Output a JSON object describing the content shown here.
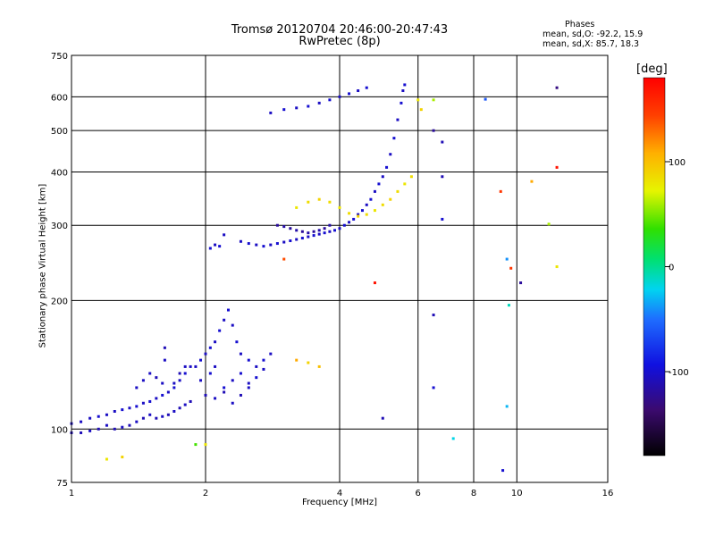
{
  "chart_data": {
    "type": "scatter",
    "title": "Tromsø 20120704 20:46:00-20:47:43",
    "subtitle": "RwPretec (8p)",
    "xlabel": "Frequency [MHz]",
    "ylabel": "Stationary phase Virtual Height [km]",
    "x_scale": "log",
    "y_scale": "log",
    "xlim": [
      1,
      16
    ],
    "ylim": [
      75,
      750
    ],
    "x_ticks": [
      1,
      2,
      4,
      6,
      8,
      10,
      16
    ],
    "y_ticks": [
      75,
      100,
      200,
      300,
      400,
      500,
      600,
      750
    ],
    "grid": true,
    "legend": {
      "heading": "Phases",
      "line1": "mean, sd,O: -92.2, 15.9",
      "line2": "mean, sd,X:  85.7, 18.3"
    },
    "colorbar": {
      "label": "[deg]",
      "range": [
        -180,
        180
      ],
      "ticks": [
        100,
        0,
        -100
      ]
    },
    "series": [
      {
        "points": [
          [
            1.0,
            103,
            -105
          ],
          [
            1.05,
            104,
            -105
          ],
          [
            1.1,
            106,
            -105
          ],
          [
            1.15,
            107,
            -100
          ],
          [
            1.2,
            108,
            -105
          ],
          [
            1.25,
            110,
            -105
          ],
          [
            1.3,
            111,
            -100
          ],
          [
            1.35,
            112,
            -105
          ],
          [
            1.4,
            113,
            -100
          ],
          [
            1.45,
            115,
            -105
          ],
          [
            1.5,
            116,
            -100
          ],
          [
            1.55,
            118,
            -105
          ],
          [
            1.6,
            120,
            -100
          ],
          [
            1.65,
            122,
            -105
          ],
          [
            1.7,
            125,
            -100
          ],
          [
            1.75,
            130,
            -105
          ],
          [
            1.8,
            135,
            -100
          ],
          [
            1.85,
            140,
            -105
          ],
          [
            1.0,
            98,
            -110
          ],
          [
            1.05,
            98,
            -110
          ],
          [
            1.1,
            99,
            -105
          ],
          [
            1.15,
            100,
            -110
          ],
          [
            1.2,
            102,
            -105
          ],
          [
            1.25,
            100,
            -110
          ],
          [
            1.3,
            101,
            -105
          ],
          [
            1.35,
            102,
            -110
          ],
          [
            1.4,
            104,
            -105
          ],
          [
            1.45,
            106,
            -110
          ],
          [
            1.5,
            108,
            -105
          ],
          [
            1.55,
            106,
            -110
          ],
          [
            1.6,
            107,
            -105
          ],
          [
            1.65,
            108,
            -110
          ],
          [
            1.7,
            110,
            -105
          ],
          [
            1.75,
            112,
            -110
          ],
          [
            1.8,
            114,
            -105
          ],
          [
            1.85,
            116,
            -110
          ],
          [
            1.4,
            125,
            -105
          ],
          [
            1.45,
            130,
            -105
          ],
          [
            1.5,
            135,
            -105
          ],
          [
            1.55,
            132,
            -110
          ],
          [
            1.6,
            128,
            -105
          ],
          [
            1.62,
            145,
            -105
          ],
          [
            1.62,
            155,
            -110
          ],
          [
            1.7,
            128,
            -105
          ],
          [
            1.75,
            135,
            -110
          ],
          [
            1.8,
            140,
            -105
          ],
          [
            1.9,
            140,
            -105
          ],
          [
            1.95,
            145,
            -100
          ],
          [
            2.0,
            150,
            -105
          ],
          [
            2.05,
            155,
            -100
          ],
          [
            2.1,
            160,
            -105
          ],
          [
            2.15,
            170,
            -100
          ],
          [
            2.2,
            180,
            -105
          ],
          [
            2.25,
            190,
            -100
          ],
          [
            2.3,
            175,
            -105
          ],
          [
            2.35,
            160,
            -100
          ],
          [
            2.4,
            150,
            -105
          ],
          [
            2.5,
            145,
            -100
          ],
          [
            2.6,
            140,
            -105
          ],
          [
            2.7,
            145,
            -100
          ],
          [
            2.8,
            150,
            -105
          ],
          [
            1.95,
            130,
            -105
          ],
          [
            2.05,
            135,
            -100
          ],
          [
            2.1,
            140,
            -105
          ],
          [
            2.2,
            125,
            -100
          ],
          [
            2.3,
            130,
            -105
          ],
          [
            2.4,
            135,
            -100
          ],
          [
            2.5,
            128,
            -105
          ],
          [
            2.6,
            132,
            -100
          ],
          [
            2.7,
            138,
            -105
          ],
          [
            2.0,
            120,
            -110
          ],
          [
            2.1,
            118,
            -105
          ],
          [
            2.2,
            122,
            -110
          ],
          [
            2.3,
            115,
            -105
          ],
          [
            2.4,
            120,
            -110
          ],
          [
            2.5,
            125,
            -105
          ],
          [
            2.05,
            265,
            -100
          ],
          [
            2.1,
            270,
            -105
          ],
          [
            2.15,
            268,
            -100
          ],
          [
            2.2,
            285,
            -105
          ],
          [
            2.4,
            275,
            -105
          ],
          [
            2.5,
            272,
            -100
          ],
          [
            2.6,
            270,
            -105
          ],
          [
            2.7,
            268,
            -100
          ],
          [
            2.8,
            270,
            -105
          ],
          [
            2.9,
            272,
            -100
          ],
          [
            3.0,
            274,
            -105
          ],
          [
            3.1,
            276,
            -100
          ],
          [
            3.2,
            278,
            -105
          ],
          [
            3.3,
            280,
            -100
          ],
          [
            3.4,
            282,
            -105
          ],
          [
            3.5,
            284,
            -100
          ],
          [
            3.6,
            286,
            -105
          ],
          [
            3.7,
            288,
            -100
          ],
          [
            3.8,
            290,
            -105
          ],
          [
            3.9,
            292,
            -100
          ],
          [
            4.0,
            295,
            -105
          ],
          [
            4.1,
            300,
            -100
          ],
          [
            4.2,
            305,
            -105
          ],
          [
            4.3,
            310,
            -100
          ],
          [
            4.4,
            318,
            -105
          ],
          [
            4.5,
            325,
            -100
          ],
          [
            4.6,
            335,
            -105
          ],
          [
            4.7,
            345,
            -100
          ],
          [
            4.8,
            360,
            -105
          ],
          [
            4.9,
            375,
            -100
          ],
          [
            5.0,
            390,
            -105
          ],
          [
            5.1,
            410,
            -100
          ],
          [
            5.2,
            440,
            -105
          ],
          [
            5.3,
            480,
            -100
          ],
          [
            5.4,
            530,
            -105
          ],
          [
            5.5,
            580,
            -100
          ],
          [
            5.55,
            620,
            -105
          ],
          [
            5.6,
            640,
            -100
          ],
          [
            2.9,
            300,
            -120
          ],
          [
            3.0,
            298,
            -115
          ],
          [
            3.1,
            295,
            -120
          ],
          [
            3.2,
            292,
            -115
          ],
          [
            3.3,
            290,
            -120
          ],
          [
            3.4,
            288,
            -115
          ],
          [
            3.5,
            290,
            -120
          ],
          [
            3.6,
            292,
            -115
          ],
          [
            3.7,
            295,
            -120
          ],
          [
            3.8,
            300,
            -115
          ],
          [
            2.8,
            550,
            -105
          ],
          [
            3.0,
            560,
            -100
          ],
          [
            3.2,
            565,
            -105
          ],
          [
            3.4,
            570,
            -100
          ],
          [
            3.6,
            580,
            -105
          ],
          [
            3.8,
            590,
            -100
          ],
          [
            4.0,
            600,
            -105
          ],
          [
            4.2,
            610,
            -100
          ],
          [
            4.4,
            620,
            -105
          ],
          [
            4.6,
            630,
            -100
          ],
          [
            3.2,
            330,
            80
          ],
          [
            3.4,
            340,
            85
          ],
          [
            3.6,
            345,
            90
          ],
          [
            3.8,
            340,
            85
          ],
          [
            4.0,
            330,
            80
          ],
          [
            4.2,
            320,
            85
          ],
          [
            4.4,
            315,
            90
          ],
          [
            4.6,
            318,
            85
          ],
          [
            4.8,
            325,
            80
          ],
          [
            5.0,
            335,
            85
          ],
          [
            5.2,
            345,
            90
          ],
          [
            5.4,
            360,
            85
          ],
          [
            5.6,
            375,
            80
          ],
          [
            5.8,
            390,
            85
          ],
          [
            1.2,
            85,
            80
          ],
          [
            1.3,
            86,
            90
          ],
          [
            1.9,
            92,
            40
          ],
          [
            2.0,
            92,
            80
          ],
          [
            3.2,
            145,
            110
          ],
          [
            3.4,
            143,
            90
          ],
          [
            3.6,
            140,
            100
          ],
          [
            3.0,
            250,
            140
          ],
          [
            4.8,
            220,
            170
          ],
          [
            6.0,
            590,
            80
          ],
          [
            6.1,
            560,
            90
          ],
          [
            6.5,
            590,
            60
          ],
          [
            6.5,
            500,
            -120
          ],
          [
            6.8,
            470,
            -110
          ],
          [
            6.8,
            390,
            -110
          ],
          [
            6.8,
            310,
            -100
          ],
          [
            6.5,
            185,
            -110
          ],
          [
            6.5,
            125,
            -100
          ],
          [
            7.2,
            95,
            -20
          ],
          [
            9.2,
            360,
            150
          ],
          [
            9.5,
            250,
            -40
          ],
          [
            9.3,
            80,
            -100
          ],
          [
            9.6,
            195,
            -10
          ],
          [
            9.5,
            113,
            -30
          ],
          [
            10.2,
            220,
            -120
          ],
          [
            10.8,
            380,
            110
          ],
          [
            11.8,
            302,
            60
          ],
          [
            12.3,
            410,
            170
          ],
          [
            12.3,
            240,
            80
          ],
          [
            12.3,
            630,
            -130
          ],
          [
            8.5,
            592,
            -60
          ],
          [
            9.7,
            238,
            150
          ],
          [
            5.0,
            106,
            -110
          ]
        ]
      }
    ]
  }
}
